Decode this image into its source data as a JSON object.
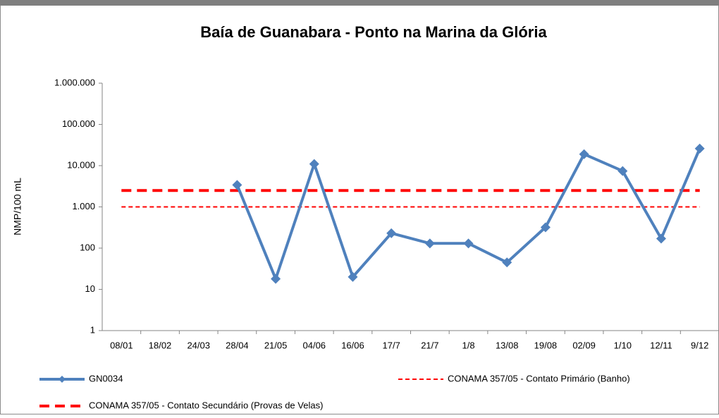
{
  "chart_data": {
    "type": "line",
    "title": "Baía de Guanabara - Ponto na Marina da Glória",
    "y_label": "NMP/100 mL",
    "categories": [
      "08/01",
      "18/02",
      "24/03",
      "28/04",
      "21/05",
      "04/06",
      "16/06",
      "17/7",
      "21/7",
      "1/8",
      "13/08",
      "19/08",
      "02/09",
      "1/10",
      "12/11",
      "9/12"
    ],
    "series": [
      {
        "name": "GN0034",
        "color": "#4f81bd",
        "line_style": "solid",
        "line_width": 4,
        "marker": "diamond",
        "values": [
          null,
          null,
          null,
          3400,
          18,
          11000,
          20,
          230,
          130,
          130,
          45,
          320,
          19000,
          7400,
          170,
          26000
        ]
      },
      {
        "name": "CONAMA 357/05 - Contato Primário (Banho)",
        "color": "#ff0000",
        "line_style": "dashed",
        "line_width": 2,
        "values": [
          1000,
          1000,
          1000,
          1000,
          1000,
          1000,
          1000,
          1000,
          1000,
          1000,
          1000,
          1000,
          1000,
          1000,
          1000,
          1000
        ]
      },
      {
        "name": "CONAMA 357/05 - Contato Secundário (Provas de Velas)",
        "color": "#ff0000",
        "line_style": "dashed",
        "line_width": 4,
        "values": [
          2500,
          2500,
          2500,
          2500,
          2500,
          2500,
          2500,
          2500,
          2500,
          2500,
          2500,
          2500,
          2500,
          2500,
          2500,
          2500
        ]
      }
    ],
    "log_scale": true,
    "ylim": [
      1,
      1000000
    ],
    "yticks": [
      1,
      10,
      100,
      {
        "value": 1000,
        "label": "1.000"
      },
      {
        "value": 10000,
        "label": "10.000"
      },
      {
        "value": 100000,
        "label": "100.000"
      },
      {
        "value": 1000000,
        "label": "1.000.000"
      }
    ],
    "grid": false,
    "legend": "bottom"
  }
}
